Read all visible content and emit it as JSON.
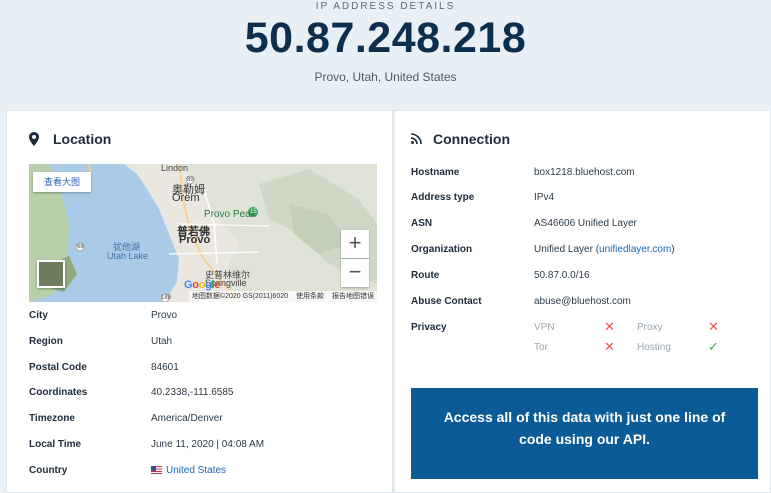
{
  "hero": {
    "kicker": "IP ADDRESS DETAILS",
    "ip": "50.87.248.218",
    "location": "Provo, Utah, United States"
  },
  "location": {
    "title": "Location",
    "icon": "map-pin-icon",
    "map": {
      "view_button": "查看大图",
      "labels": {
        "lindon": "Lindon",
        "orem_cn": "奥勒姆",
        "orem": "Orem",
        "provo_cn": "普若佛",
        "provo": "Provo",
        "provo_peak": "Provo Peak",
        "utah_lake_cn": "犹他湖",
        "utah_lake": "Utah Lake",
        "springville_cn": "史普林维尔",
        "springville": "Springville",
        "route_89": "89",
        "route_68": "68",
        "route_189": "189",
        "route_15": "15"
      },
      "zoom_in": "+",
      "zoom_out": "−",
      "logo": "Google",
      "attribution": [
        "地图数据",
        "©2020 GS(2011)6020",
        "使用条款",
        "报告地图错误"
      ]
    },
    "rows": [
      {
        "key": "City",
        "value": "Provo"
      },
      {
        "key": "Region",
        "value": "Utah"
      },
      {
        "key": "Postal Code",
        "value": "84601"
      },
      {
        "key": "Coordinates",
        "value": "40.2338,-111.6585"
      },
      {
        "key": "Timezone",
        "value": "America/Denver"
      },
      {
        "key": "Local Time",
        "value": "June 11, 2020 | 04:08 AM"
      },
      {
        "key": "Country",
        "value": "United States"
      }
    ]
  },
  "connection": {
    "title": "Connection",
    "icon": "signal-icon",
    "hostname": {
      "key": "Hostname",
      "value": "box1218.bluehost.com"
    },
    "address_type": {
      "key": "Address type",
      "value": "IPv4"
    },
    "asn": {
      "key": "ASN",
      "value": "AS46606 Unified Layer"
    },
    "organization": {
      "key": "Organization",
      "value_prefix": "Unified Layer (",
      "link": "unifiedlayer.com",
      "value_suffix": ")"
    },
    "route": {
      "key": "Route",
      "value": "50.87.0.0/16"
    },
    "abuse": {
      "key": "Abuse Contact",
      "value": "abuse@bluehost.com"
    },
    "privacy": {
      "key": "Privacy",
      "items": [
        {
          "label": "VPN",
          "status": false
        },
        {
          "label": "Proxy",
          "status": false
        },
        {
          "label": "Tor",
          "status": false
        },
        {
          "label": "Hosting",
          "status": true
        }
      ]
    },
    "cta": "Access all of this data with just one line of code using our API."
  },
  "colors": {
    "accent": "#0b5b96",
    "link": "#1a67b1",
    "false_mark": "#e05a55",
    "true_mark": "#3daa5f"
  }
}
